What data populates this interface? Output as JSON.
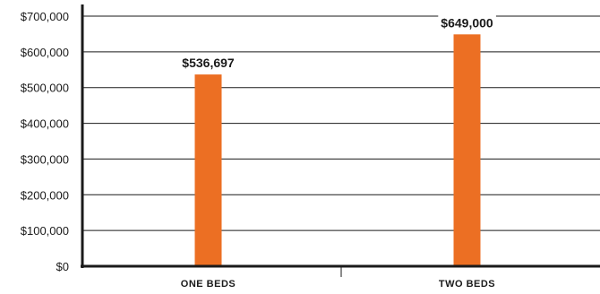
{
  "chart_data": {
    "type": "bar",
    "title": "",
    "xlabel": "",
    "ylabel": "",
    "categories": [
      "ONE BEDS",
      "TWO BEDS"
    ],
    "values": [
      536697,
      649000
    ],
    "data_labels": [
      "$536,697",
      "$649,000"
    ],
    "ylim": [
      0,
      700000
    ],
    "yticks": [
      0,
      100000,
      200000,
      300000,
      400000,
      500000,
      600000,
      700000
    ],
    "ytick_labels": [
      "$0",
      "$100,000",
      "$200,000",
      "$300,000",
      "$400,000",
      "$500,000",
      "$600,000",
      "$700,000"
    ],
    "grid": true,
    "legend": "none",
    "bar_color": "#ec6f23",
    "grid_color": "#1a1a1a",
    "axis_color": "#1a1a1a"
  }
}
